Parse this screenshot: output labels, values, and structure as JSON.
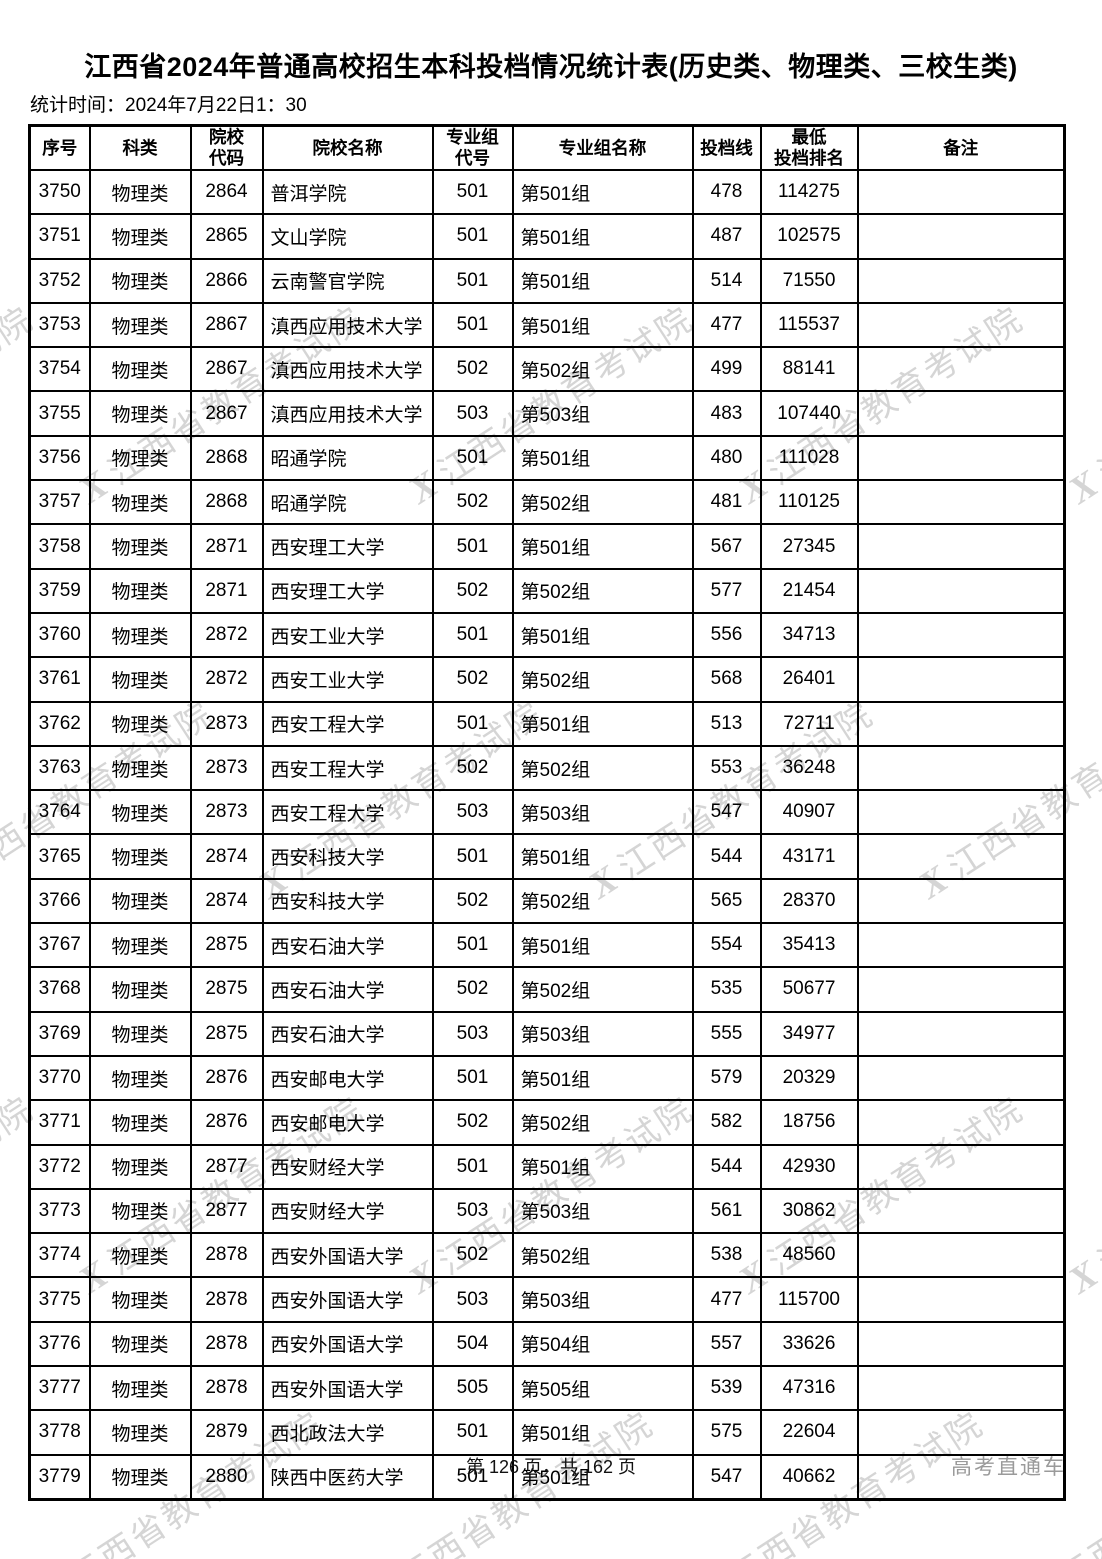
{
  "page": {
    "title": "江西省2024年普通高校招生本科投档情况统计表(历史类、物理类、三校生类)",
    "stats_time": "统计时间：2024年7月22日1：30",
    "watermark": {
      "logo": "X",
      "text": "江西省教育考试院"
    },
    "footer": {
      "page_info": "第 126 页，共 162 页",
      "brand": "高考直通车"
    }
  },
  "table": {
    "headers": [
      "序号",
      "科类",
      "院校\n代码",
      "院校名称",
      "专业组\n代号",
      "专业组名称",
      "投档线",
      "最低\n投档排名",
      "备注"
    ],
    "rows": [
      {
        "seq": "3750",
        "category": "物理类",
        "code": "2864",
        "name": "普洱学院",
        "group_code": "501",
        "group_name": "第501组",
        "line": "478",
        "rank": "114275",
        "remark": ""
      },
      {
        "seq": "3751",
        "category": "物理类",
        "code": "2865",
        "name": "文山学院",
        "group_code": "501",
        "group_name": "第501组",
        "line": "487",
        "rank": "102575",
        "remark": ""
      },
      {
        "seq": "3752",
        "category": "物理类",
        "code": "2866",
        "name": "云南警官学院",
        "group_code": "501",
        "group_name": "第501组",
        "line": "514",
        "rank": "71550",
        "remark": ""
      },
      {
        "seq": "3753",
        "category": "物理类",
        "code": "2867",
        "name": "滇西应用技术大学",
        "group_code": "501",
        "group_name": "第501组",
        "line": "477",
        "rank": "115537",
        "remark": ""
      },
      {
        "seq": "3754",
        "category": "物理类",
        "code": "2867",
        "name": "滇西应用技术大学",
        "group_code": "502",
        "group_name": "第502组",
        "line": "499",
        "rank": "88141",
        "remark": ""
      },
      {
        "seq": "3755",
        "category": "物理类",
        "code": "2867",
        "name": "滇西应用技术大学",
        "group_code": "503",
        "group_name": "第503组",
        "line": "483",
        "rank": "107440",
        "remark": ""
      },
      {
        "seq": "3756",
        "category": "物理类",
        "code": "2868",
        "name": "昭通学院",
        "group_code": "501",
        "group_name": "第501组",
        "line": "480",
        "rank": "111028",
        "remark": ""
      },
      {
        "seq": "3757",
        "category": "物理类",
        "code": "2868",
        "name": "昭通学院",
        "group_code": "502",
        "group_name": "第502组",
        "line": "481",
        "rank": "110125",
        "remark": ""
      },
      {
        "seq": "3758",
        "category": "物理类",
        "code": "2871",
        "name": "西安理工大学",
        "group_code": "501",
        "group_name": "第501组",
        "line": "567",
        "rank": "27345",
        "remark": ""
      },
      {
        "seq": "3759",
        "category": "物理类",
        "code": "2871",
        "name": "西安理工大学",
        "group_code": "502",
        "group_name": "第502组",
        "line": "577",
        "rank": "21454",
        "remark": ""
      },
      {
        "seq": "3760",
        "category": "物理类",
        "code": "2872",
        "name": "西安工业大学",
        "group_code": "501",
        "group_name": "第501组",
        "line": "556",
        "rank": "34713",
        "remark": ""
      },
      {
        "seq": "3761",
        "category": "物理类",
        "code": "2872",
        "name": "西安工业大学",
        "group_code": "502",
        "group_name": "第502组",
        "line": "568",
        "rank": "26401",
        "remark": ""
      },
      {
        "seq": "3762",
        "category": "物理类",
        "code": "2873",
        "name": "西安工程大学",
        "group_code": "501",
        "group_name": "第501组",
        "line": "513",
        "rank": "72711",
        "remark": ""
      },
      {
        "seq": "3763",
        "category": "物理类",
        "code": "2873",
        "name": "西安工程大学",
        "group_code": "502",
        "group_name": "第502组",
        "line": "553",
        "rank": "36248",
        "remark": ""
      },
      {
        "seq": "3764",
        "category": "物理类",
        "code": "2873",
        "name": "西安工程大学",
        "group_code": "503",
        "group_name": "第503组",
        "line": "547",
        "rank": "40907",
        "remark": ""
      },
      {
        "seq": "3765",
        "category": "物理类",
        "code": "2874",
        "name": "西安科技大学",
        "group_code": "501",
        "group_name": "第501组",
        "line": "544",
        "rank": "43171",
        "remark": ""
      },
      {
        "seq": "3766",
        "category": "物理类",
        "code": "2874",
        "name": "西安科技大学",
        "group_code": "502",
        "group_name": "第502组",
        "line": "565",
        "rank": "28370",
        "remark": ""
      },
      {
        "seq": "3767",
        "category": "物理类",
        "code": "2875",
        "name": "西安石油大学",
        "group_code": "501",
        "group_name": "第501组",
        "line": "554",
        "rank": "35413",
        "remark": ""
      },
      {
        "seq": "3768",
        "category": "物理类",
        "code": "2875",
        "name": "西安石油大学",
        "group_code": "502",
        "group_name": "第502组",
        "line": "535",
        "rank": "50677",
        "remark": ""
      },
      {
        "seq": "3769",
        "category": "物理类",
        "code": "2875",
        "name": "西安石油大学",
        "group_code": "503",
        "group_name": "第503组",
        "line": "555",
        "rank": "34977",
        "remark": ""
      },
      {
        "seq": "3770",
        "category": "物理类",
        "code": "2876",
        "name": "西安邮电大学",
        "group_code": "501",
        "group_name": "第501组",
        "line": "579",
        "rank": "20329",
        "remark": ""
      },
      {
        "seq": "3771",
        "category": "物理类",
        "code": "2876",
        "name": "西安邮电大学",
        "group_code": "502",
        "group_name": "第502组",
        "line": "582",
        "rank": "18756",
        "remark": ""
      },
      {
        "seq": "3772",
        "category": "物理类",
        "code": "2877",
        "name": "西安财经大学",
        "group_code": "501",
        "group_name": "第501组",
        "line": "544",
        "rank": "42930",
        "remark": ""
      },
      {
        "seq": "3773",
        "category": "物理类",
        "code": "2877",
        "name": "西安财经大学",
        "group_code": "503",
        "group_name": "第503组",
        "line": "561",
        "rank": "30862",
        "remark": ""
      },
      {
        "seq": "3774",
        "category": "物理类",
        "code": "2878",
        "name": "西安外国语大学",
        "group_code": "502",
        "group_name": "第502组",
        "line": "538",
        "rank": "48560",
        "remark": ""
      },
      {
        "seq": "3775",
        "category": "物理类",
        "code": "2878",
        "name": "西安外国语大学",
        "group_code": "503",
        "group_name": "第503组",
        "line": "477",
        "rank": "115700",
        "remark": ""
      },
      {
        "seq": "3776",
        "category": "物理类",
        "code": "2878",
        "name": "西安外国语大学",
        "group_code": "504",
        "group_name": "第504组",
        "line": "557",
        "rank": "33626",
        "remark": ""
      },
      {
        "seq": "3777",
        "category": "物理类",
        "code": "2878",
        "name": "西安外国语大学",
        "group_code": "505",
        "group_name": "第505组",
        "line": "539",
        "rank": "47316",
        "remark": ""
      },
      {
        "seq": "3778",
        "category": "物理类",
        "code": "2879",
        "name": "西北政法大学",
        "group_code": "501",
        "group_name": "第501组",
        "line": "575",
        "rank": "22604",
        "remark": ""
      },
      {
        "seq": "3779",
        "category": "物理类",
        "code": "2880",
        "name": "陕西中医药大学",
        "group_code": "501",
        "group_name": "第501组",
        "line": "547",
        "rank": "40662",
        "remark": ""
      }
    ]
  }
}
